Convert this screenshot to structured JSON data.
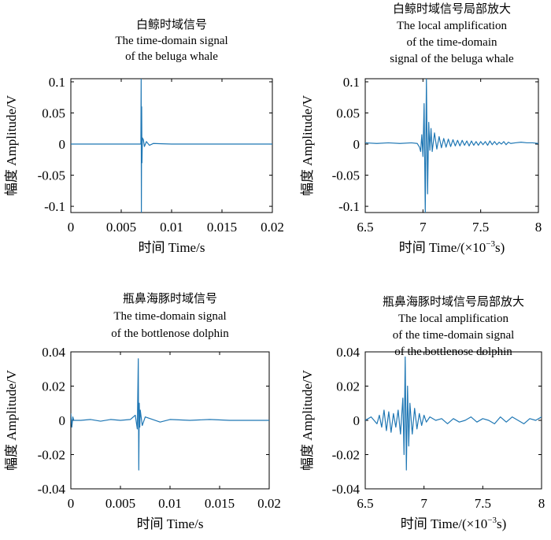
{
  "line_color": "#1f77b4",
  "chart_data": [
    {
      "type": "line",
      "title_lines": [
        "白鲸时域信号",
        "The time-domain signal",
        "of the beluga whale"
      ],
      "xlabel": "时间 Time/s",
      "ylabel": "幅度 Amplitude/V",
      "xlim": [
        0,
        0.02
      ],
      "ylim": [
        -0.11,
        0.105
      ],
      "xticks": [
        0,
        0.005,
        0.01,
        0.015,
        0.02
      ],
      "xtick_labels": [
        "0",
        "0.005",
        "0.01",
        "0.015",
        "0.02"
      ],
      "yticks": [
        0.1,
        0.05,
        0,
        -0.05,
        -0.1
      ],
      "ytick_labels": [
        "0.1",
        "0.05",
        "0",
        "-0.05",
        "-0.1"
      ],
      "series": [
        {
          "x": [
            0,
            0.002,
            0.004,
            0.0065,
            0.00695,
            0.00698,
            0.007,
            0.00703,
            0.00706,
            0.0071,
            0.0072,
            0.0073,
            0.0075,
            0.0078,
            0.0082,
            0.009,
            0.01,
            0.012,
            0.015,
            0.0175,
            0.02
          ],
          "y": [
            0,
            0,
            0,
            0,
            0,
            0.105,
            -0.11,
            0.06,
            -0.03,
            0.01,
            0.007,
            -0.004,
            0.004,
            -0.002,
            0.001,
            0.0005,
            0,
            0,
            0,
            0,
            0
          ]
        }
      ]
    },
    {
      "type": "line",
      "title_lines": [
        "白鲸时域信号局部放大",
        "The local amplification",
        "of the time-domain",
        "signal of the beluga whale"
      ],
      "xlabel_main": "时间 Time/(×10",
      "xlabel_sup": "−3",
      "xlabel_end": "s)",
      "ylabel": "幅度 Amplitude/V",
      "xlim": [
        6.5,
        8
      ],
      "ylim": [
        -0.11,
        0.105
      ],
      "xticks": [
        6.5,
        7,
        7.5,
        8
      ],
      "xtick_labels": [
        "6.5",
        "7",
        "7.5",
        "8"
      ],
      "yticks": [
        0.1,
        0.05,
        0,
        -0.05,
        -0.1
      ],
      "ytick_labels": [
        "0.1",
        "0.05",
        "0",
        "-0.05",
        "-0.1"
      ],
      "series": [
        {
          "x": [
            6.5,
            6.6,
            6.7,
            6.8,
            6.9,
            6.95,
            6.97,
            6.98,
            6.99,
            7.0,
            7.01,
            7.02,
            7.03,
            7.04,
            7.05,
            7.06,
            7.07,
            7.08,
            7.1,
            7.12,
            7.14,
            7.16,
            7.18,
            7.2,
            7.22,
            7.24,
            7.26,
            7.28,
            7.3,
            7.32,
            7.34,
            7.36,
            7.38,
            7.4,
            7.42,
            7.44,
            7.46,
            7.48,
            7.5,
            7.52,
            7.54,
            7.56,
            7.58,
            7.6,
            7.62,
            7.64,
            7.66,
            7.68,
            7.7,
            7.72,
            7.74,
            7.76,
            7.8,
            7.85,
            7.9,
            7.95,
            8.0
          ],
          "y": [
            0.002,
            0.001,
            0.002,
            0.001,
            0.002,
            0.001,
            -0.005,
            -0.012,
            0.015,
            -0.02,
            0.065,
            -0.11,
            0.105,
            -0.08,
            0.035,
            -0.01,
            0.025,
            -0.012,
            0.018,
            -0.008,
            0.012,
            -0.006,
            0.009,
            -0.005,
            0.008,
            -0.004,
            0.007,
            -0.003,
            0.006,
            -0.003,
            0.006,
            -0.002,
            0.005,
            -0.003,
            0.005,
            -0.002,
            0.004,
            -0.002,
            0.004,
            -0.001,
            0.004,
            -0.002,
            0.005,
            -0.001,
            0.004,
            -0.001,
            0.003,
            0.0,
            0.004,
            -0.001,
            0.003,
            0.001,
            0.002,
            0.003,
            0.002,
            0.002,
            0.001
          ]
        }
      ]
    },
    {
      "type": "line",
      "title_lines": [
        "瓶鼻海豚时域信号",
        "The time-domain signal",
        "of the bottlenose dolphin"
      ],
      "xlabel": "时间 Time/s",
      "ylabel": "幅度 Amplitude/V",
      "xlim": [
        0,
        0.02
      ],
      "ylim": [
        -0.04,
        0.04
      ],
      "xticks": [
        0,
        0.005,
        0.01,
        0.015,
        0.02
      ],
      "xtick_labels": [
        "0",
        "0.005",
        "0.01",
        "0.015",
        "0.02"
      ],
      "yticks": [
        0.04,
        0.02,
        0,
        -0.02,
        -0.04
      ],
      "ytick_labels": [
        "0.04",
        "0.02",
        "0",
        "-0.02",
        "-0.04"
      ],
      "series": [
        {
          "x": [
            0,
            0.0001,
            0.0002,
            0.0003,
            0.001,
            0.002,
            0.003,
            0.004,
            0.005,
            0.006,
            0.0065,
            0.0067,
            0.0068,
            0.00685,
            0.0069,
            0.00695,
            0.007,
            0.0072,
            0.0075,
            0.008,
            0.009,
            0.01,
            0.012,
            0.014,
            0.016,
            0.018,
            0.02
          ],
          "y": [
            0.004,
            -0.004,
            0.002,
            0.0,
            0.0,
            0.0005,
            -0.0005,
            0.0005,
            0.0,
            0.0005,
            0.003,
            -0.005,
            0.036,
            -0.029,
            0.01,
            -0.004,
            0.006,
            -0.003,
            0.002,
            0.001,
            -0.001,
            0.0005,
            0.0,
            0.0005,
            0.0,
            0.0,
            0.0
          ]
        }
      ]
    },
    {
      "type": "line",
      "title_lines": [
        "瓶鼻海豚时域信号局部放大",
        "The local amplification",
        "of the time-domain signal",
        "of the bottlenose dolphin"
      ],
      "xlabel_main": "时间 Time/(×10",
      "xlabel_sup": "−3",
      "xlabel_end": "s)",
      "ylabel": "幅度 Amplitude/V",
      "xlim": [
        6.5,
        8
      ],
      "ylim": [
        -0.04,
        0.04
      ],
      "xticks": [
        6.5,
        7,
        7.5,
        8
      ],
      "xtick_labels": [
        "6.5",
        "7",
        "7.5",
        "8"
      ],
      "yticks": [
        0.04,
        0.02,
        0,
        -0.02,
        -0.04
      ],
      "ytick_labels": [
        "0.04",
        "0.02",
        "0",
        "-0.02",
        "-0.04"
      ],
      "series": [
        {
          "x": [
            6.5,
            6.55,
            6.6,
            6.62,
            6.64,
            6.66,
            6.68,
            6.7,
            6.72,
            6.74,
            6.76,
            6.78,
            6.8,
            6.82,
            6.83,
            6.84,
            6.85,
            6.86,
            6.87,
            6.88,
            6.9,
            6.92,
            6.94,
            6.96,
            6.98,
            7.0,
            7.02,
            7.05,
            7.1,
            7.15,
            7.2,
            7.25,
            7.3,
            7.35,
            7.4,
            7.45,
            7.5,
            7.55,
            7.6,
            7.65,
            7.7,
            7.75,
            7.8,
            7.85,
            7.9,
            7.95,
            8.0
          ],
          "y": [
            0.0,
            0.002,
            -0.002,
            0.003,
            -0.004,
            0.006,
            -0.006,
            0.005,
            -0.007,
            0.004,
            -0.004,
            0.006,
            -0.008,
            0.013,
            -0.02,
            0.037,
            -0.029,
            0.02,
            -0.015,
            0.01,
            -0.008,
            0.007,
            -0.005,
            0.004,
            -0.003,
            0.003,
            -0.001,
            0.002,
            0.0,
            0.001,
            -0.002,
            0.001,
            -0.001,
            0.0,
            0.002,
            -0.001,
            0.001,
            0.0,
            -0.002,
            0.002,
            -0.001,
            0.002,
            0.0,
            -0.002,
            0.001,
            0.0,
            0.002
          ]
        }
      ]
    }
  ]
}
